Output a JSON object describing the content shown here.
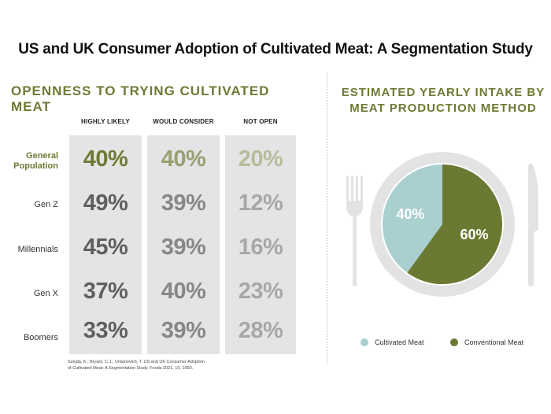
{
  "title": "US and UK Consumer Adoption of Cultivated Meat: A Segmentation Study",
  "left_heading": "OPENNESS TO TRYING CULTIVATED MEAT",
  "right_heading_line1": "ESTIMATED YEARLY INTAKE BY",
  "right_heading_line2": "MEAT PRODUCTION METHOD",
  "citation_line1": "Szejda, K.; Bryant, C.J.; Urbanovich, T. US and UK Consumer Adoption",
  "citation_line2": "of Cultivated Meat: A Segmentation Study. Foods 2021, 10, 1050.",
  "colors": {
    "olive": "#6e7a34",
    "cultivated": "#a9cfcf",
    "conventional": "#6b7a32",
    "plate": "#e3e3e3",
    "row_text_general": [
      "#6e7a34",
      "#96a071",
      "#b7bc9c"
    ],
    "row_text_other": [
      "#5f5f5f",
      "#878787",
      "#a7a7a7"
    ]
  },
  "chart_data": [
    {
      "type": "table",
      "title": "OPENNESS TO TRYING CULTIVATED MEAT",
      "columns": [
        "HIGHLY LIKELY",
        "WOULD CONSIDER",
        "NOT OPEN"
      ],
      "rows": [
        {
          "label_line1": "General",
          "label_line2": "Population",
          "values": [
            "40%",
            "40%",
            "20%"
          ],
          "highlight": true
        },
        {
          "label_line1": "Gen Z",
          "label_line2": "",
          "values": [
            "49%",
            "39%",
            "12%"
          ],
          "highlight": false
        },
        {
          "label_line1": "Millennials",
          "label_line2": "",
          "values": [
            "45%",
            "39%",
            "16%"
          ],
          "highlight": false
        },
        {
          "label_line1": "Gen X",
          "label_line2": "",
          "values": [
            "37%",
            "40%",
            "23%"
          ],
          "highlight": false
        },
        {
          "label_line1": "Boomers",
          "label_line2": "",
          "values": [
            "33%",
            "39%",
            "28%"
          ],
          "highlight": false
        }
      ]
    },
    {
      "type": "pie",
      "title": "ESTIMATED YEARLY INTAKE BY MEAT PRODUCTION METHOD",
      "slices": [
        {
          "name": "Cultivated Meat",
          "value": 40,
          "label": "40%"
        },
        {
          "name": "Conventional Meat",
          "value": 60,
          "label": "60%"
        }
      ],
      "legend": "bottom"
    }
  ]
}
